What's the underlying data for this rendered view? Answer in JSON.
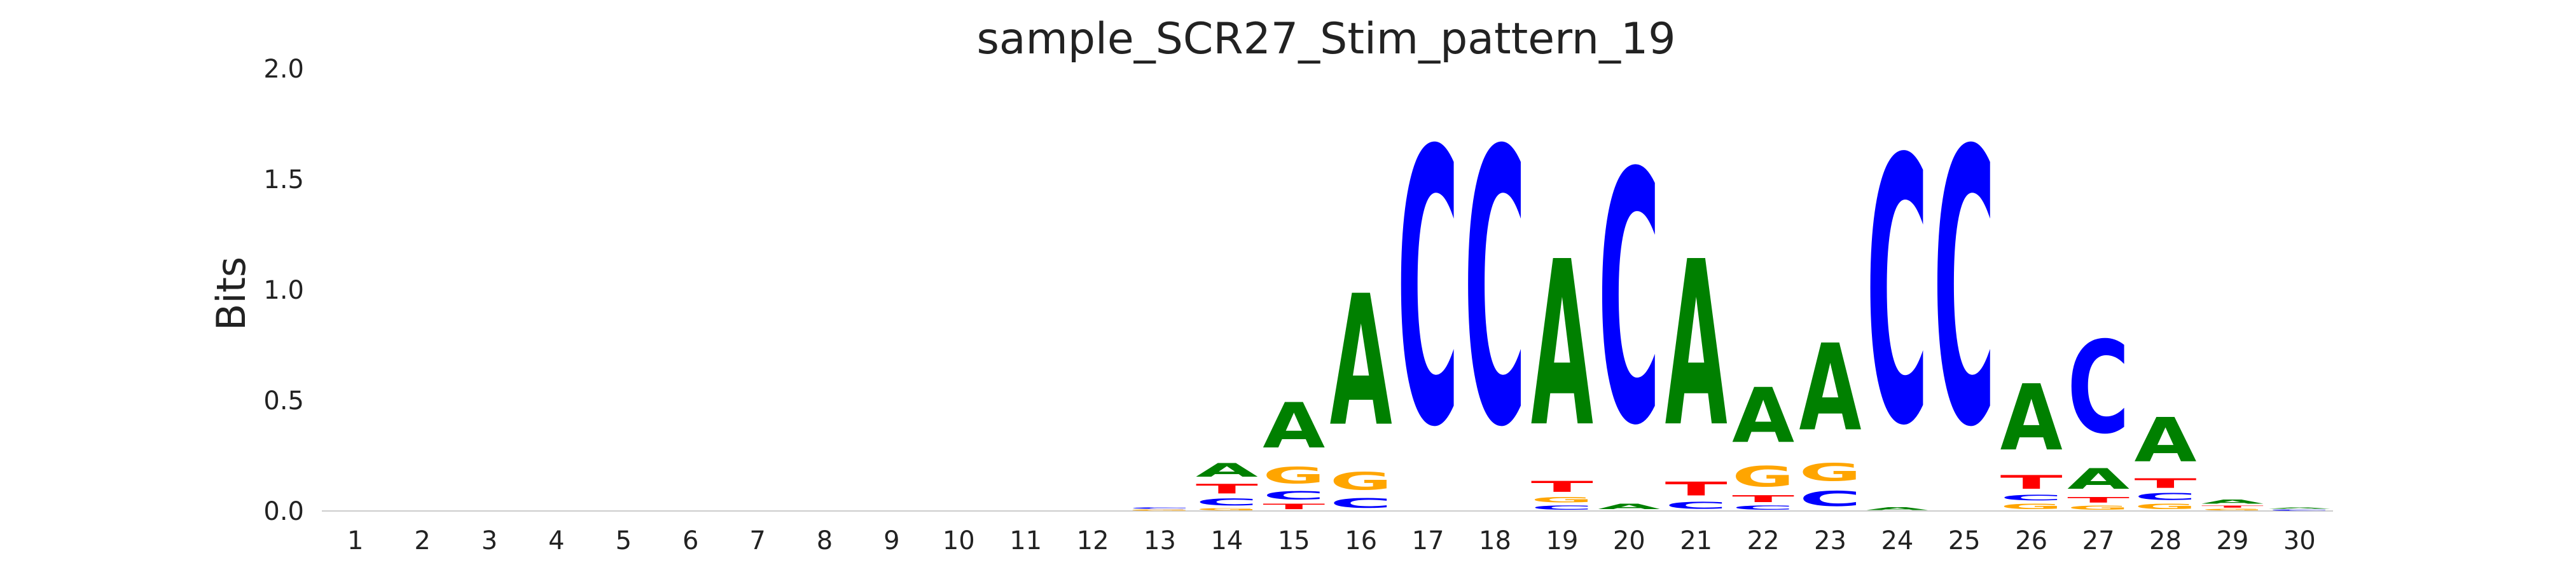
{
  "chart_data": {
    "type": "sequence-logo",
    "title": "sample_SCR27_Stim_pattern_19",
    "xlabel": "",
    "ylabel": "Bits",
    "ylim": [
      0,
      2.0
    ],
    "yticks": [
      "0.0",
      "0.5",
      "1.0",
      "1.5",
      "2.0"
    ],
    "positions": [
      1,
      2,
      3,
      4,
      5,
      6,
      7,
      8,
      9,
      10,
      11,
      12,
      13,
      14,
      15,
      16,
      17,
      18,
      19,
      20,
      21,
      22,
      23,
      24,
      25,
      26,
      27,
      28,
      29,
      30
    ],
    "letter_colors": {
      "A": "#008000",
      "C": "#0000ff",
      "G": "#ffa500",
      "T": "#ff0000"
    },
    "stacks": [
      {
        "position": 1,
        "letters": []
      },
      {
        "position": 2,
        "letters": []
      },
      {
        "position": 3,
        "letters": []
      },
      {
        "position": 4,
        "letters": []
      },
      {
        "position": 5,
        "letters": []
      },
      {
        "position": 6,
        "letters": []
      },
      {
        "position": 7,
        "letters": []
      },
      {
        "position": 8,
        "letters": []
      },
      {
        "position": 9,
        "letters": []
      },
      {
        "position": 10,
        "letters": []
      },
      {
        "position": 11,
        "letters": []
      },
      {
        "position": 12,
        "letters": []
      },
      {
        "position": 13,
        "letters": [
          {
            "base": "G",
            "bits": 0.008
          },
          {
            "base": "C",
            "bits": 0.01
          }
        ]
      },
      {
        "position": 14,
        "letters": [
          {
            "base": "G",
            "bits": 0.015
          },
          {
            "base": "C",
            "bits": 0.05
          },
          {
            "base": "T",
            "bits": 0.07
          },
          {
            "base": "A",
            "bits": 0.1
          }
        ]
      },
      {
        "position": 15,
        "letters": [
          {
            "base": "T",
            "bits": 0.04
          },
          {
            "base": "C",
            "bits": 0.06
          },
          {
            "base": "G",
            "bits": 0.12
          },
          {
            "base": "A",
            "bits": 0.33
          }
        ]
      },
      {
        "position": 16,
        "letters": [
          {
            "base": "C",
            "bits": 0.07
          },
          {
            "base": "G",
            "bits": 0.13
          },
          {
            "base": "A",
            "bits": 0.95
          }
        ]
      },
      {
        "position": 17,
        "letters": [
          {
            "base": "C",
            "bits": 1.99
          }
        ]
      },
      {
        "position": 18,
        "letters": [
          {
            "base": "C",
            "bits": 1.99
          }
        ]
      },
      {
        "position": 19,
        "letters": [
          {
            "base": "C",
            "bits": 0.03
          },
          {
            "base": "G",
            "bits": 0.04
          },
          {
            "base": "T",
            "bits": 0.08
          },
          {
            "base": "A",
            "bits": 1.2
          }
        ]
      },
      {
        "position": 20,
        "letters": [
          {
            "base": "A",
            "bits": 0.04
          },
          {
            "base": "C",
            "bits": 1.82
          }
        ]
      },
      {
        "position": 21,
        "letters": [
          {
            "base": "C",
            "bits": 0.05
          },
          {
            "base": "T",
            "bits": 0.1
          },
          {
            "base": "A",
            "bits": 1.2
          }
        ]
      },
      {
        "position": 22,
        "letters": [
          {
            "base": "C",
            "bits": 0.03
          },
          {
            "base": "T",
            "bits": 0.05
          },
          {
            "base": "G",
            "bits": 0.15
          },
          {
            "base": "A",
            "bits": 0.4
          }
        ]
      },
      {
        "position": 23,
        "letters": [
          {
            "base": "C",
            "bits": 0.11
          },
          {
            "base": "G",
            "bits": 0.13
          },
          {
            "base": "A",
            "bits": 0.63
          }
        ]
      },
      {
        "position": 24,
        "letters": [
          {
            "base": "A",
            "bits": 0.02
          },
          {
            "base": "C",
            "bits": 1.92
          }
        ]
      },
      {
        "position": 25,
        "letters": [
          {
            "base": "C",
            "bits": 1.99
          }
        ]
      },
      {
        "position": 26,
        "letters": [
          {
            "base": "G",
            "bits": 0.04
          },
          {
            "base": "C",
            "bits": 0.04
          },
          {
            "base": "T",
            "bits": 0.1
          },
          {
            "base": "A",
            "bits": 0.48
          }
        ]
      },
      {
        "position": 27,
        "letters": [
          {
            "base": "G",
            "bits": 0.03
          },
          {
            "base": "T",
            "bits": 0.04
          },
          {
            "base": "A",
            "bits": 0.15
          },
          {
            "base": "C",
            "bits": 0.67
          }
        ]
      },
      {
        "position": 28,
        "letters": [
          {
            "base": "G",
            "bits": 0.04
          },
          {
            "base": "C",
            "bits": 0.05
          },
          {
            "base": "T",
            "bits": 0.07
          },
          {
            "base": "A",
            "bits": 0.32
          }
        ]
      },
      {
        "position": 29,
        "letters": [
          {
            "base": "G",
            "bits": 0.012
          },
          {
            "base": "T",
            "bits": 0.015
          },
          {
            "base": "A",
            "bits": 0.03
          }
        ]
      },
      {
        "position": 30,
        "letters": [
          {
            "base": "C",
            "bits": 0.008
          },
          {
            "base": "A",
            "bits": 0.01
          }
        ]
      }
    ]
  }
}
